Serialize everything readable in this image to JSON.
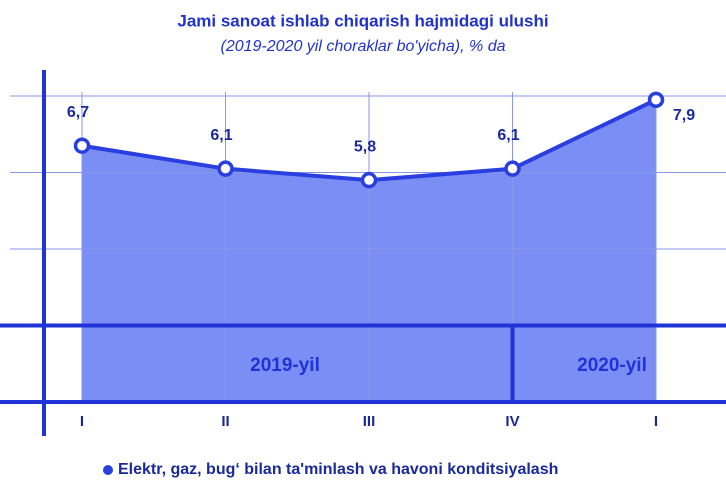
{
  "chart_data": {
    "type": "area",
    "title": "Jami sanoat ishlab chiqarish hajmidagi ulushi",
    "subtitle": "(2019-2020 yil choraklar bo'yicha), % da",
    "categories": [
      "I",
      "II",
      "III",
      "IV",
      "I"
    ],
    "series": [
      {
        "name": "Elektr, gaz, bug‘ bilan ta'minlash va havoni konditsiyalash",
        "color": "#2a3fe0",
        "fill": "#7b8ef5",
        "values": [
          6.7,
          6.1,
          5.8,
          6.1,
          7.9
        ],
        "value_labels": [
          "6,7",
          "6,1",
          "5,8",
          "6,1",
          "7,9"
        ]
      }
    ],
    "annotations": [
      "2019-yil",
      "2020-yil"
    ],
    "ylim": [
      0,
      8
    ],
    "yticks": [
      0,
      2,
      4,
      6,
      8
    ],
    "grid": true,
    "legend": "bottom"
  }
}
